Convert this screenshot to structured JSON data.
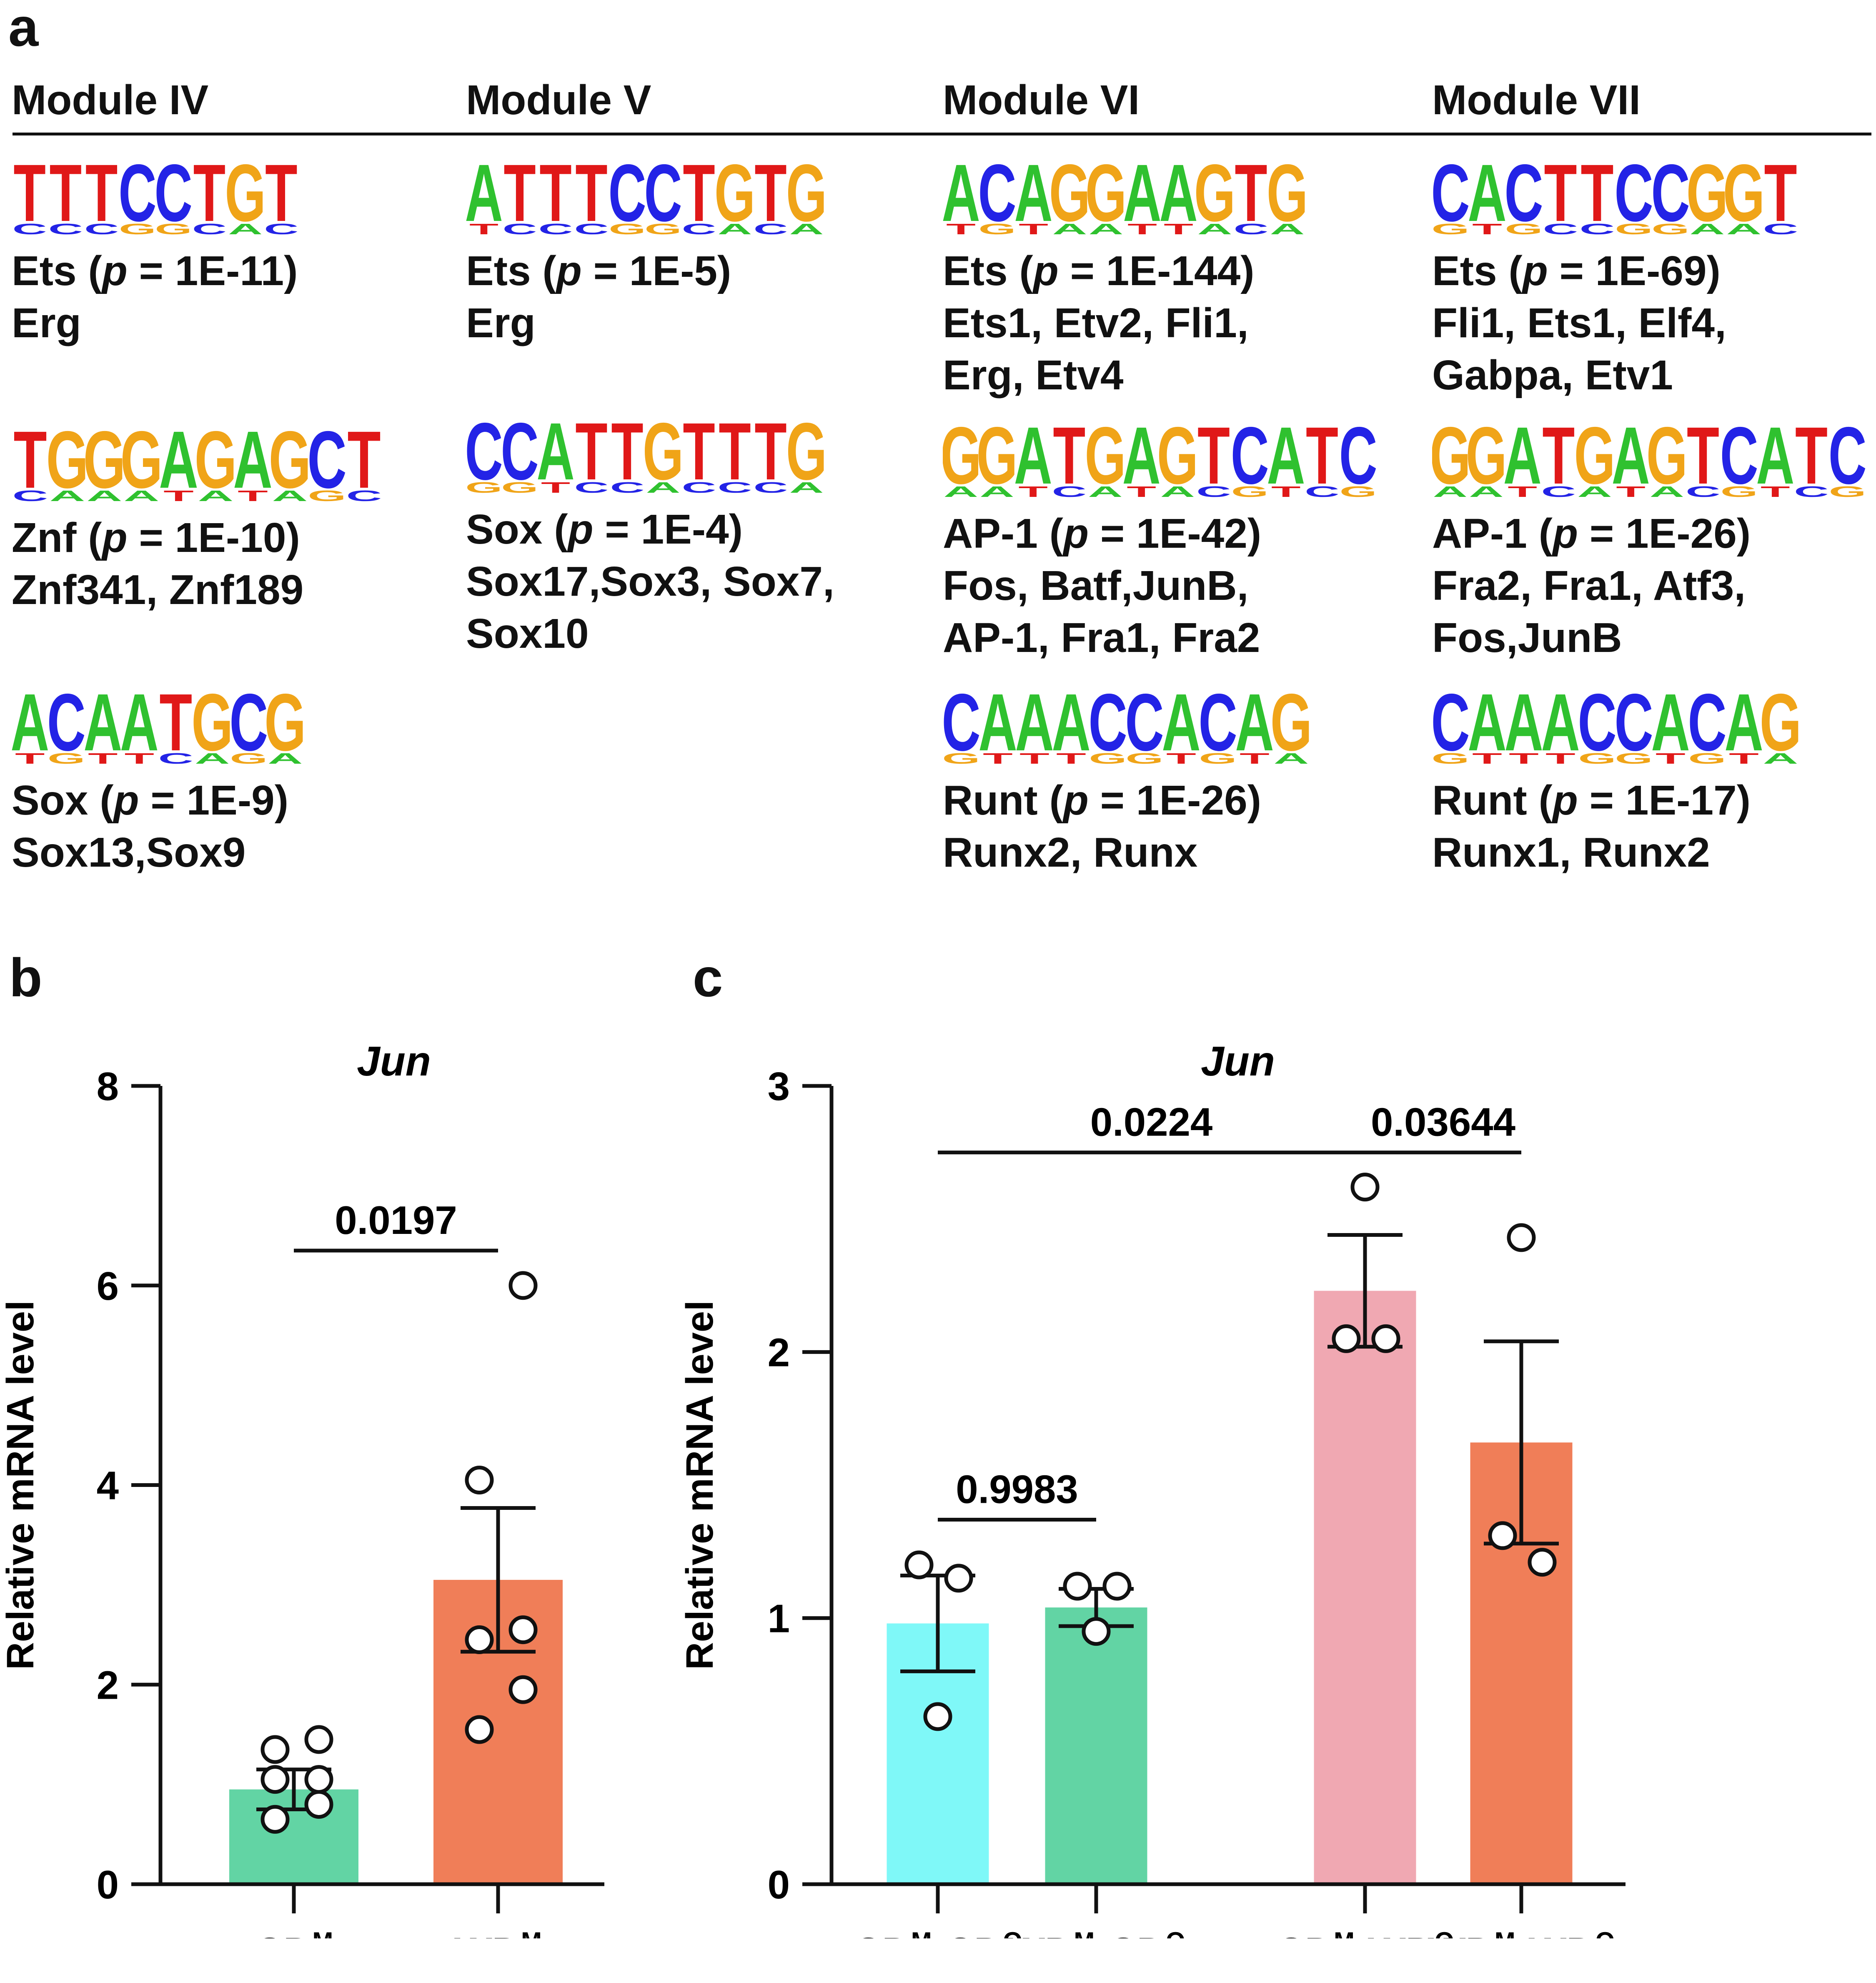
{
  "panel_labels": {
    "a": "a",
    "b": "b",
    "c": "c"
  },
  "modules": [
    {
      "name": "Module IV",
      "motifs": [
        {
          "logo": "TTTCCTGT",
          "family": "Ets",
          "p": "1E-11",
          "members": [
            "Erg"
          ]
        },
        {
          "logo": "TGGGAGAGCT",
          "family": "Znf",
          "p": "1E-10",
          "members": [
            "Znf341, Znf189"
          ]
        },
        {
          "logo": "ACAATGCG",
          "family": "Sox",
          "p": "1E-9",
          "members": [
            "Sox13,Sox9"
          ]
        }
      ]
    },
    {
      "name": "Module V",
      "motifs": [
        {
          "logo": "ATTTCCTGTG",
          "family": "Ets",
          "p": "1E-5",
          "members": [
            "Erg"
          ]
        },
        {
          "logo": "CCATTGTTTG",
          "family": "Sox",
          "p": "1E-4",
          "members": [
            "Sox17,Sox3, Sox7,",
            "Sox10"
          ]
        }
      ]
    },
    {
      "name": "Module VI",
      "motifs": [
        {
          "logo": "ACAGGAAGTG",
          "family": "Ets",
          "p": "1E-144",
          "members": [
            "Ets1, Etv2, Fli1,",
            "Erg, Etv4"
          ]
        },
        {
          "logo": "GGATGAGTCATC",
          "family": "AP-1",
          "p": "1E-42",
          "members": [
            "Fos, Batf,JunB,",
            "AP-1, Fra1, Fra2"
          ]
        },
        {
          "logo": "CAAACCACAG",
          "family": "Runt",
          "p": "1E-26",
          "members": [
            "Runx2, Runx"
          ]
        }
      ]
    },
    {
      "name": "Module VII",
      "motifs": [
        {
          "logo": "CACTTCCGGT",
          "family": "Ets",
          "p": "1E-69",
          "members": [
            "Fli1, Ets1, Elf4,",
            "Gabpa, Etv1"
          ]
        },
        {
          "logo": "GGATGAGTCATC",
          "family": "AP-1",
          "p": "1E-26",
          "members": [
            "Fra2, Fra1, Atf3,",
            "Fos,JunB"
          ]
        },
        {
          "logo": "CAAACCACAG",
          "family": "Runt",
          "p": "1E-17",
          "members": [
            "Runx1, Runx2"
          ]
        }
      ]
    }
  ],
  "chart_data": [
    {
      "type": "bar",
      "panel": "b",
      "title": "Jun",
      "ylabel": "Relative mRNA level",
      "xlabel": "",
      "ylim": [
        0,
        8
      ],
      "yticks": [
        "0",
        "2",
        "4",
        "6",
        "8"
      ],
      "categories": [
        {
          "base": "CD",
          "sup": "M"
        },
        {
          "base": "WD",
          "sup": "M"
        }
      ],
      "values": [
        0.95,
        3.05
      ],
      "sem": [
        0.2,
        0.72
      ],
      "colors": [
        "#62d4a4",
        "#f07e58"
      ],
      "points": [
        [
          0.65,
          0.8,
          1.05,
          1.05,
          1.35,
          1.45
        ],
        [
          1.55,
          1.95,
          2.45,
          2.55,
          4.05,
          6.0
        ]
      ],
      "comparisons": [
        {
          "from": 0,
          "to": 1,
          "label": "0.0197",
          "y": 6.35
        }
      ]
    },
    {
      "type": "bar",
      "panel": "c",
      "title": "Jun",
      "ylabel": "Relative mRNA level",
      "xlabel": "",
      "ylim": [
        0,
        3
      ],
      "yticks": [
        "0",
        "1",
        "2",
        "3"
      ],
      "categories": [
        {
          "base": "CD",
          "sup": "M",
          "base2": "-CD",
          "sup2": "O"
        },
        {
          "base": "WD",
          "sup": "M",
          "base2": "-CD",
          "sup2": "O"
        },
        {
          "base": "CD",
          "sup": "M",
          "base2": "-WD",
          "sup2": "O"
        },
        {
          "base": "WD",
          "sup": "M",
          "base2": "-WD",
          "sup2": "O"
        }
      ],
      "values": [
        0.98,
        1.04,
        2.23,
        1.66
      ],
      "sem": [
        0.18,
        0.07,
        0.21,
        0.38
      ],
      "colors": [
        "#7ff8f8",
        "#62d4a4",
        "#f0a8b2",
        "#f07e58"
      ],
      "points": [
        [
          0.63,
          1.2,
          1.15
        ],
        [
          0.95,
          1.12,
          1.12
        ],
        [
          2.62,
          2.05,
          2.05
        ],
        [
          2.43,
          1.31,
          1.21
        ]
      ],
      "comparisons": [
        {
          "from": 0,
          "to": 1,
          "label": "0.9983",
          "y": 1.37
        },
        {
          "from": 0,
          "to": 2,
          "label": "0.0224",
          "y": 2.75
        },
        {
          "from": 2,
          "to": 3,
          "label": "0.03644",
          "y": 2.75
        }
      ]
    }
  ]
}
